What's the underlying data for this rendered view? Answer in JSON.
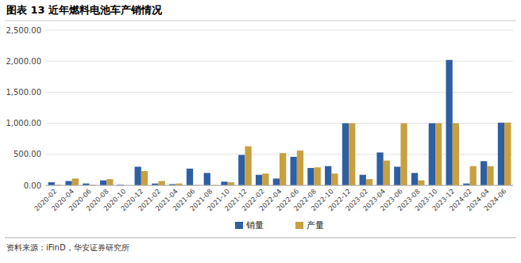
{
  "chart_data": {
    "type": "bar",
    "title": "图表 13 近年燃料电池车产销情况",
    "annotations": [
      "资料来源：iFinD，华安证券研究所"
    ],
    "categories": [
      "2020-02",
      "2020-04",
      "2020-06",
      "2020-08",
      "2020-10",
      "2020-12",
      "2021-02",
      "2021-04",
      "2021-06",
      "2021-08",
      "2021-10",
      "2021-12",
      "2022-02",
      "2022-04",
      "2022-06",
      "2022-08",
      "2022-10",
      "2022-12",
      "2023-02",
      "2023-04",
      "2023-06",
      "2023-08",
      "2023-10",
      "2023-12",
      "2024-02",
      "2024-04",
      "2024-06"
    ],
    "series": [
      {
        "name": "销量",
        "color": "#2E5FA3",
        "values": [
          50,
          70,
          30,
          80,
          10,
          300,
          30,
          20,
          270,
          200,
          60,
          490,
          170,
          110,
          460,
          280,
          310,
          1000,
          170,
          530,
          300,
          200,
          1000,
          2020,
          30,
          390,
          1010
        ]
      },
      {
        "name": "产量",
        "color": "#C8A040",
        "values": [
          10,
          110,
          10,
          100,
          0,
          230,
          70,
          30,
          5,
          5,
          50,
          630,
          190,
          520,
          560,
          290,
          190,
          1000,
          100,
          400,
          1000,
          80,
          1000,
          1000,
          310,
          310,
          1010
        ]
      }
    ],
    "ylim": [
      0,
      2500
    ],
    "yticks": [
      {
        "value": 0,
        "label": "0.00"
      },
      {
        "value": 500,
        "label": "500.00"
      },
      {
        "value": 1000,
        "label": "1,000.00"
      },
      {
        "value": 1500,
        "label": "1,500.00"
      },
      {
        "value": 2000,
        "label": "2,000.00"
      },
      {
        "value": 2500,
        "label": "2,500.00"
      }
    ],
    "grid": true,
    "legend": "bottom"
  }
}
